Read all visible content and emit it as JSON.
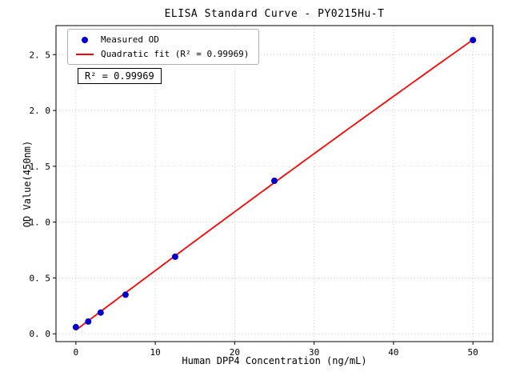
{
  "chart_data": {
    "type": "scatter",
    "title": "ELISA Standard Curve - PY0215Hu-T",
    "xlabel": "Human DPP4 Concentration (ng/mL)",
    "ylabel": "OD Value(450nm)",
    "xlim": [
      -2.5,
      52.5
    ],
    "ylim": [
      -0.07,
      2.76
    ],
    "xtick_values": [
      0,
      10,
      20,
      30,
      40,
      50
    ],
    "xtick_labels": [
      "0",
      "10",
      "20",
      "30",
      "40",
      "50"
    ],
    "ytick_values": [
      0.0,
      0.5,
      1.0,
      1.5,
      2.0,
      2.5
    ],
    "ytick_labels": [
      "0. 0",
      "0. 5",
      "1. 0",
      "1. 5",
      "2. 0",
      "2. 5"
    ],
    "grid": true,
    "grid_color": "#bbbbbb",
    "series": [
      {
        "name": "Measured OD",
        "type": "scatter",
        "color": "#0000cc",
        "points": [
          [
            0,
            0.06
          ],
          [
            1.563,
            0.11
          ],
          [
            3.125,
            0.19
          ],
          [
            6.25,
            0.35
          ],
          [
            12.5,
            0.69
          ],
          [
            25,
            1.37
          ],
          [
            50,
            2.63
          ]
        ]
      },
      {
        "name": "Quadratic fit",
        "type": "quadratic-fit-line",
        "color": "#ff0000",
        "fit_of_series": 0,
        "x_range": [
          0,
          50
        ]
      }
    ],
    "legend": {
      "position": "upper-left",
      "entries": [
        {
          "label": "Measured OD",
          "marker": "dot",
          "color": "#0000cc"
        },
        {
          "label": "Quadratic fit (R² = 0.99969)",
          "marker": "line",
          "color": "#ff0000"
        }
      ]
    },
    "annotation": {
      "text": "R² = 0.99969"
    },
    "r_squared": 0.99969
  }
}
